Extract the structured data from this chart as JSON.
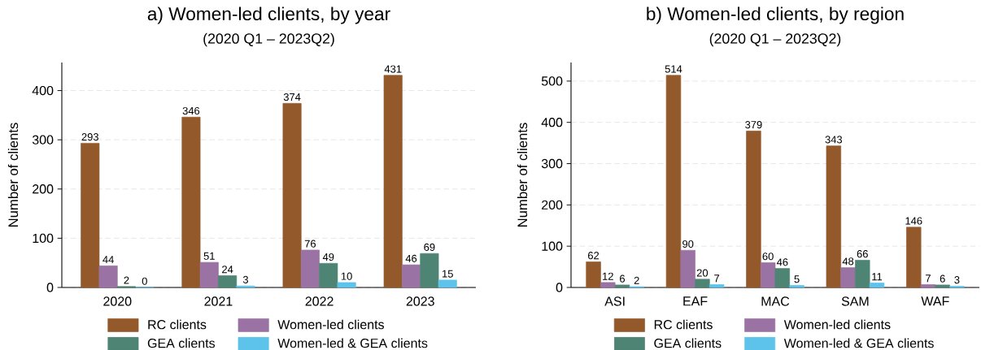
{
  "chart_data": [
    {
      "type": "bar",
      "title": "a) Women-led clients, by year",
      "subtitle": "(2020 Q1 – 2023Q2)",
      "ylabel": "Number of clients",
      "categories": [
        "2020",
        "2021",
        "2022",
        "2023"
      ],
      "series": [
        {
          "name": "RC clients",
          "color": "#93592a",
          "values": [
            293,
            346,
            374,
            431
          ]
        },
        {
          "name": "Women-led clients",
          "color": "#9a72a3",
          "values": [
            44,
            51,
            76,
            46
          ]
        },
        {
          "name": "GEA clients",
          "color": "#4e8473",
          "values": [
            2,
            24,
            49,
            69
          ]
        },
        {
          "name": "Women-led & GEA clients",
          "color": "#5dc3ea",
          "values": [
            0,
            3,
            10,
            15
          ]
        }
      ],
      "ylim": [
        0,
        457
      ],
      "yticks": [
        0,
        100,
        200,
        300,
        400
      ],
      "grid": "y",
      "legend": "bottom",
      "data_labels": true
    },
    {
      "type": "bar",
      "title": "b) Women-led clients, by region",
      "subtitle": "(2020 Q1 – 2023Q2)",
      "ylabel": "Number of clients",
      "categories": [
        "ASI",
        "EAF",
        "MAC",
        "SAM",
        "WAF"
      ],
      "series": [
        {
          "name": "RC clients",
          "color": "#93592a",
          "values": [
            62,
            514,
            379,
            343,
            146
          ]
        },
        {
          "name": "Women-led clients",
          "color": "#9a72a3",
          "values": [
            12,
            90,
            60,
            48,
            7
          ]
        },
        {
          "name": "GEA clients",
          "color": "#4e8473",
          "values": [
            6,
            20,
            46,
            66,
            6
          ]
        },
        {
          "name": "Women-led & GEA clients",
          "color": "#5dc3ea",
          "values": [
            2,
            7,
            5,
            11,
            3
          ]
        }
      ],
      "ylim": [
        0,
        545
      ],
      "yticks": [
        0,
        100,
        200,
        300,
        400,
        500
      ],
      "grid": "y",
      "legend": "bottom",
      "data_labels": true
    }
  ]
}
